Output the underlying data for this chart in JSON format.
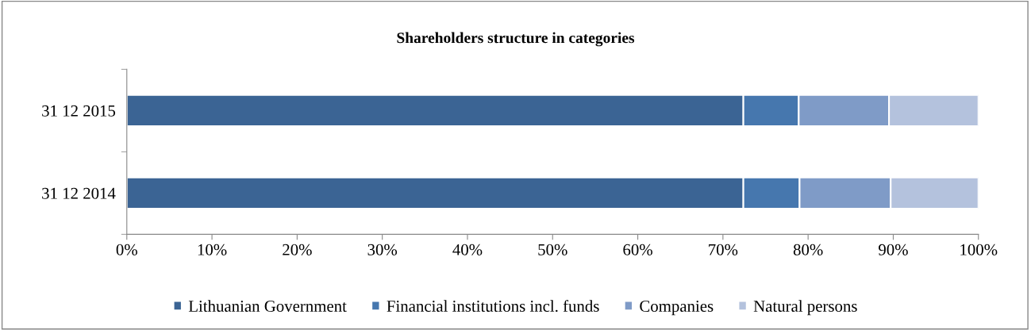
{
  "chart_data": {
    "type": "bar",
    "orientation": "horizontal",
    "stacked": true,
    "title": "Shareholders structure in categories",
    "categories": [
      "31 12 2015",
      "31 12 2014"
    ],
    "series": [
      {
        "name": "Lithuanian Government",
        "color": "#3b6494",
        "values": [
          72.4,
          72.4
        ]
      },
      {
        "name": "Financial institutions incl. funds",
        "color": "#4677ae",
        "values": [
          6.5,
          6.6
        ]
      },
      {
        "name": "Companies",
        "color": "#7f9bc7",
        "values": [
          10.6,
          10.7
        ]
      },
      {
        "name": "Natural persons",
        "color": "#b4c2dd",
        "values": [
          10.5,
          10.3
        ]
      }
    ],
    "xlim": [
      0,
      100
    ],
    "xticks": [
      {
        "value": 0,
        "label": "0%"
      },
      {
        "value": 10,
        "label": "10%"
      },
      {
        "value": 20,
        "label": "20%"
      },
      {
        "value": 30,
        "label": "30%"
      },
      {
        "value": 40,
        "label": "40%"
      },
      {
        "value": 50,
        "label": "50%"
      },
      {
        "value": 60,
        "label": "60%"
      },
      {
        "value": 70,
        "label": "70%"
      },
      {
        "value": 80,
        "label": "80%"
      },
      {
        "value": 90,
        "label": "90%"
      },
      {
        "value": 100,
        "label": "100%"
      }
    ],
    "grid": false,
    "legend": "bottom"
  }
}
